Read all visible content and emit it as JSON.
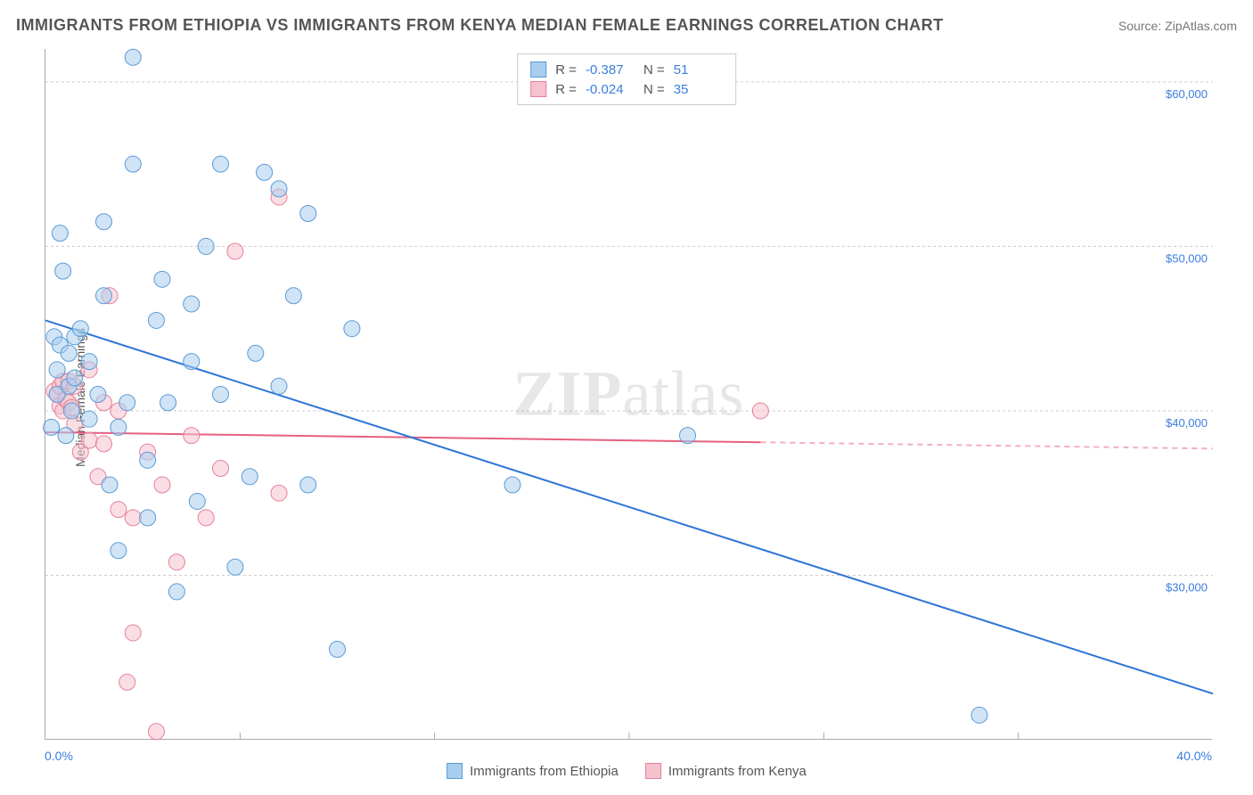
{
  "title": "IMMIGRANTS FROM ETHIOPIA VS IMMIGRANTS FROM KENYA MEDIAN FEMALE EARNINGS CORRELATION CHART",
  "source": "Source: ZipAtlas.com",
  "y_axis_title": "Median Female Earnings",
  "watermark": "ZIPatlas",
  "chart": {
    "type": "scatter",
    "xlim": [
      0,
      40
    ],
    "ylim": [
      20000,
      62000
    ],
    "x_ticks": [
      0,
      40
    ],
    "x_tick_labels": [
      "0.0%",
      "40.0%"
    ],
    "x_minor_ticks": [
      6.67,
      13.33,
      20,
      26.67,
      33.33
    ],
    "y_ticks": [
      30000,
      40000,
      50000,
      60000
    ],
    "y_tick_labels": [
      "$30,000",
      "$40,000",
      "$50,000",
      "$60,000"
    ],
    "grid_color": "#cccccc",
    "background_color": "#ffffff",
    "series": [
      {
        "name": "Immigrants from Ethiopia",
        "color_fill": "#a9cdee",
        "color_stroke": "#5b9bd5",
        "fill_opacity": 0.55,
        "marker_radius": 9,
        "R": -0.387,
        "N": 51,
        "regression": {
          "x1": 0,
          "y1": 45500,
          "x2": 40,
          "y2": 22800,
          "color": "#2e75d6",
          "width": 2,
          "solid_until_x": 40
        },
        "points": [
          [
            0.3,
            44500
          ],
          [
            0.4,
            42500
          ],
          [
            0.4,
            41000
          ],
          [
            0.5,
            44000
          ],
          [
            0.5,
            50800
          ],
          [
            0.6,
            48500
          ],
          [
            0.7,
            38500
          ],
          [
            0.8,
            41500
          ],
          [
            0.8,
            43500
          ],
          [
            0.9,
            40000
          ],
          [
            1.0,
            42000
          ],
          [
            1.0,
            44500
          ],
          [
            1.2,
            45000
          ],
          [
            1.5,
            39500
          ],
          [
            1.5,
            43000
          ],
          [
            1.8,
            41000
          ],
          [
            2.0,
            47000
          ],
          [
            2.0,
            51500
          ],
          [
            2.2,
            35500
          ],
          [
            2.5,
            31500
          ],
          [
            2.5,
            39000
          ],
          [
            2.8,
            40500
          ],
          [
            3.0,
            55000
          ],
          [
            3.0,
            61500
          ],
          [
            3.5,
            33500
          ],
          [
            3.5,
            37000
          ],
          [
            3.8,
            45500
          ],
          [
            4.0,
            48000
          ],
          [
            4.2,
            40500
          ],
          [
            4.5,
            29000
          ],
          [
            5.0,
            43000
          ],
          [
            5.0,
            46500
          ],
          [
            5.2,
            34500
          ],
          [
            5.5,
            50000
          ],
          [
            6.0,
            41000
          ],
          [
            6.0,
            55000
          ],
          [
            6.5,
            30500
          ],
          [
            7.0,
            36000
          ],
          [
            7.2,
            43500
          ],
          [
            7.5,
            54500
          ],
          [
            8.0,
            41500
          ],
          [
            8.0,
            53500
          ],
          [
            8.5,
            47000
          ],
          [
            9.0,
            35500
          ],
          [
            9.0,
            52000
          ],
          [
            10.0,
            25500
          ],
          [
            10.5,
            45000
          ],
          [
            16.0,
            35500
          ],
          [
            22.0,
            38500
          ],
          [
            32.0,
            21500
          ],
          [
            0.2,
            39000
          ]
        ]
      },
      {
        "name": "Immigrants from Kenya",
        "color_fill": "#f5c2cd",
        "color_stroke": "#e6809a",
        "fill_opacity": 0.55,
        "marker_radius": 9,
        "R": -0.024,
        "N": 35,
        "regression": {
          "x1": 0,
          "y1": 38700,
          "x2": 40,
          "y2": 37700,
          "color": "#e6607f",
          "width": 2,
          "solid_until_x": 24.5
        },
        "points": [
          [
            0.3,
            41200
          ],
          [
            0.4,
            41000
          ],
          [
            0.5,
            40300
          ],
          [
            0.5,
            41500
          ],
          [
            0.6,
            41800
          ],
          [
            0.6,
            40000
          ],
          [
            0.7,
            40700
          ],
          [
            0.8,
            40500
          ],
          [
            0.8,
            41800
          ],
          [
            0.9,
            40200
          ],
          [
            1.0,
            41500
          ],
          [
            1.0,
            39200
          ],
          [
            1.2,
            37500
          ],
          [
            1.5,
            38200
          ],
          [
            1.5,
            42500
          ],
          [
            1.8,
            36000
          ],
          [
            2.0,
            38000
          ],
          [
            2.0,
            40500
          ],
          [
            2.2,
            47000
          ],
          [
            2.5,
            34000
          ],
          [
            2.5,
            40000
          ],
          [
            2.8,
            23500
          ],
          [
            3.0,
            26500
          ],
          [
            3.0,
            33500
          ],
          [
            3.5,
            37500
          ],
          [
            3.8,
            20500
          ],
          [
            4.0,
            35500
          ],
          [
            4.5,
            30800
          ],
          [
            5.0,
            38500
          ],
          [
            5.5,
            33500
          ],
          [
            6.0,
            36500
          ],
          [
            6.5,
            49700
          ],
          [
            8.0,
            35000
          ],
          [
            8.0,
            53000
          ],
          [
            24.5,
            40000
          ]
        ]
      }
    ],
    "stats_box": {
      "border_color": "#cccccc"
    },
    "legend_labels": [
      "Immigrants from Ethiopia",
      "Immigrants from Kenya"
    ]
  }
}
